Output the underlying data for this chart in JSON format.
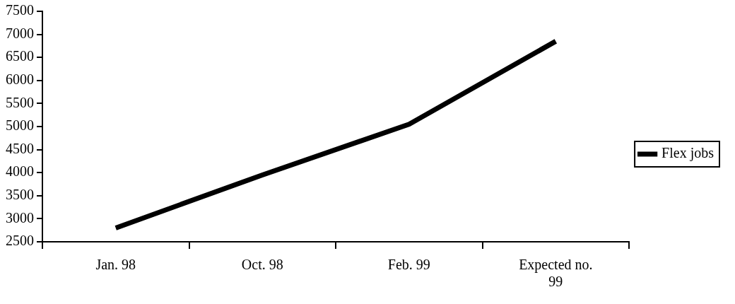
{
  "chart_data": {
    "type": "line",
    "categories": [
      "Jan. 98",
      "Oct. 98",
      "Feb. 99",
      "Expected no. 99"
    ],
    "series": [
      {
        "name": "Flex jobs",
        "color": "#000000",
        "values": [
          2800,
          3950,
          5050,
          6850
        ]
      }
    ],
    "ylim": [
      2500,
      7500
    ],
    "yticks": [
      2500,
      3000,
      3500,
      4000,
      4500,
      5000,
      5500,
      6000,
      6500,
      7000,
      7500
    ],
    "grid": false,
    "legend": "right",
    "marker": "none",
    "line_style": "solid"
  }
}
